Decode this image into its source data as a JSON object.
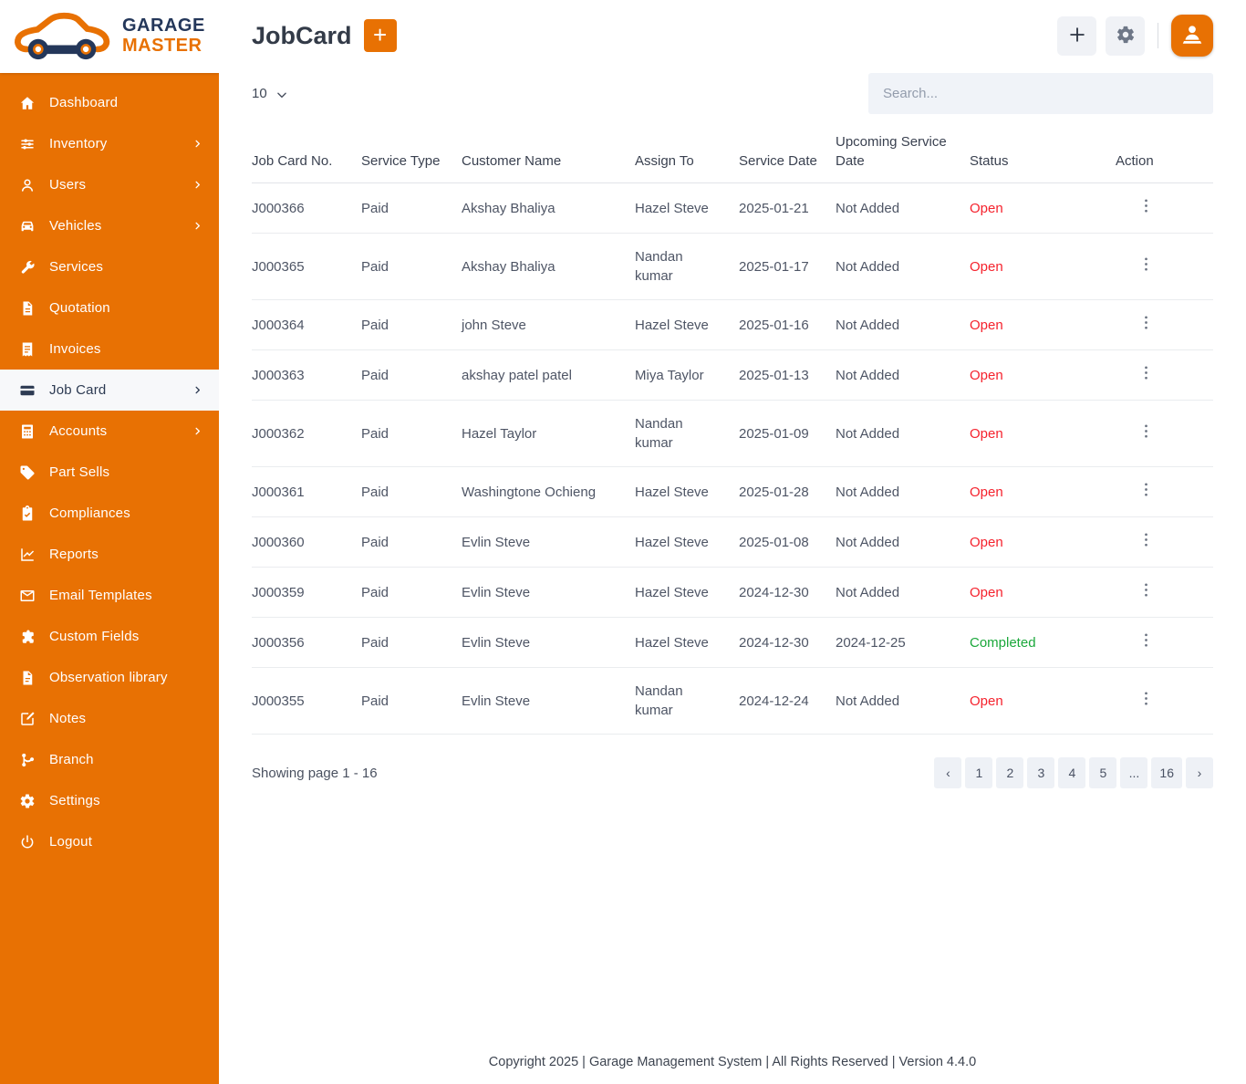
{
  "brand": {
    "line1": "GARAGE",
    "line2": "MASTER",
    "logo_icon": "car-wrench-logo"
  },
  "colors": {
    "primary": "#E87103",
    "status_open": "#F5222D",
    "status_completed": "#1BA83B"
  },
  "sidebar": {
    "items": [
      {
        "label": "Dashboard",
        "icon": "home-icon",
        "has_submenu": false,
        "active": false
      },
      {
        "label": "Inventory",
        "icon": "inventory-icon",
        "has_submenu": true,
        "active": false
      },
      {
        "label": "Users",
        "icon": "users-icon",
        "has_submenu": true,
        "active": false
      },
      {
        "label": "Vehicles",
        "icon": "vehicles-icon",
        "has_submenu": true,
        "active": false
      },
      {
        "label": "Services",
        "icon": "services-icon",
        "has_submenu": false,
        "active": false
      },
      {
        "label": "Quotation",
        "icon": "quotation-icon",
        "has_submenu": false,
        "active": false
      },
      {
        "label": "Invoices",
        "icon": "invoices-icon",
        "has_submenu": false,
        "active": false
      },
      {
        "label": "Job Card",
        "icon": "job-card-icon",
        "has_submenu": true,
        "active": true
      },
      {
        "label": "Accounts",
        "icon": "accounts-icon",
        "has_submenu": true,
        "active": false
      },
      {
        "label": "Part Sells",
        "icon": "part-sells-icon",
        "has_submenu": false,
        "active": false
      },
      {
        "label": "Compliances",
        "icon": "compliances-icon",
        "has_submenu": false,
        "active": false
      },
      {
        "label": "Reports",
        "icon": "reports-icon",
        "has_submenu": false,
        "active": false
      },
      {
        "label": "Email Templates",
        "icon": "email-templates-icon",
        "has_submenu": false,
        "active": false
      },
      {
        "label": "Custom Fields",
        "icon": "custom-fields-icon",
        "has_submenu": false,
        "active": false
      },
      {
        "label": "Observation library",
        "icon": "observation-library-icon",
        "has_submenu": false,
        "active": false
      },
      {
        "label": "Notes",
        "icon": "notes-icon",
        "has_submenu": false,
        "active": false
      },
      {
        "label": "Branch",
        "icon": "branch-icon",
        "has_submenu": false,
        "active": false
      },
      {
        "label": "Settings",
        "icon": "settings-icon",
        "has_submenu": false,
        "active": false
      },
      {
        "label": "Logout",
        "icon": "logout-icon",
        "has_submenu": false,
        "active": false
      }
    ]
  },
  "header": {
    "title": "JobCard",
    "add_button": "+",
    "actions": {
      "add_icon": "plus-icon",
      "settings_icon": "gear-icon",
      "profile_icon": "support-agent-icon"
    }
  },
  "toolbar": {
    "page_size": "10",
    "page_size_icon": "chevron-down-icon",
    "search_placeholder": "Search..."
  },
  "table": {
    "action_icon": "kebab-menu-icon",
    "columns": [
      {
        "key": "job_card_no",
        "label": "Job Card No."
      },
      {
        "key": "service_type",
        "label": "Service Type"
      },
      {
        "key": "customer_name",
        "label": "Customer Name"
      },
      {
        "key": "assign_to",
        "label": "Assign To"
      },
      {
        "key": "service_date",
        "label": "Service Date"
      },
      {
        "key": "upcoming_service_date",
        "label": "Upcoming Service Date"
      },
      {
        "key": "status",
        "label": "Status"
      },
      {
        "key": "action",
        "label": "Action"
      }
    ],
    "rows": [
      {
        "job_card_no": "J000366",
        "service_type": "Paid",
        "customer_name": "Akshay Bhaliya",
        "assign_to": "Hazel Steve",
        "service_date": "2025-01-21",
        "upcoming_service_date": "Not Added",
        "status": "Open"
      },
      {
        "job_card_no": "J000365",
        "service_type": "Paid",
        "customer_name": "Akshay Bhaliya",
        "assign_to": "Nandan kumar",
        "service_date": "2025-01-17",
        "upcoming_service_date": "Not Added",
        "status": "Open"
      },
      {
        "job_card_no": "J000364",
        "service_type": "Paid",
        "customer_name": "john Steve",
        "assign_to": "Hazel Steve",
        "service_date": "2025-01-16",
        "upcoming_service_date": "Not Added",
        "status": "Open"
      },
      {
        "job_card_no": "J000363",
        "service_type": "Paid",
        "customer_name": "akshay patel patel",
        "assign_to": "Miya Taylor",
        "service_date": "2025-01-13",
        "upcoming_service_date": "Not Added",
        "status": "Open"
      },
      {
        "job_card_no": "J000362",
        "service_type": "Paid",
        "customer_name": "Hazel Taylor",
        "assign_to": "Nandan kumar",
        "service_date": "2025-01-09",
        "upcoming_service_date": "Not Added",
        "status": "Open"
      },
      {
        "job_card_no": "J000361",
        "service_type": "Paid",
        "customer_name": "Washingtone Ochieng",
        "assign_to": "Hazel Steve",
        "service_date": "2025-01-28",
        "upcoming_service_date": "Not Added",
        "status": "Open"
      },
      {
        "job_card_no": "J000360",
        "service_type": "Paid",
        "customer_name": "Evlin Steve",
        "assign_to": "Hazel Steve",
        "service_date": "2025-01-08",
        "upcoming_service_date": "Not Added",
        "status": "Open"
      },
      {
        "job_card_no": "J000359",
        "service_type": "Paid",
        "customer_name": "Evlin Steve",
        "assign_to": "Hazel Steve",
        "service_date": "2024-12-30",
        "upcoming_service_date": "Not Added",
        "status": "Open"
      },
      {
        "job_card_no": "J000356",
        "service_type": "Paid",
        "customer_name": "Evlin Steve",
        "assign_to": "Hazel Steve",
        "service_date": "2024-12-30",
        "upcoming_service_date": "2024-12-25",
        "status": "Completed"
      },
      {
        "job_card_no": "J000355",
        "service_type": "Paid",
        "customer_name": "Evlin Steve",
        "assign_to": "Nandan kumar",
        "service_date": "2024-12-24",
        "upcoming_service_date": "Not Added",
        "status": "Open"
      }
    ]
  },
  "pagination": {
    "summary": "Showing page 1 - 16",
    "buttons": [
      "‹",
      "1",
      "2",
      "3",
      "4",
      "5",
      "...",
      "16",
      "›"
    ]
  },
  "footer": {
    "copyright": "Copyright 2025 | Garage Management System | All Rights Reserved | Version 4.4.0"
  }
}
